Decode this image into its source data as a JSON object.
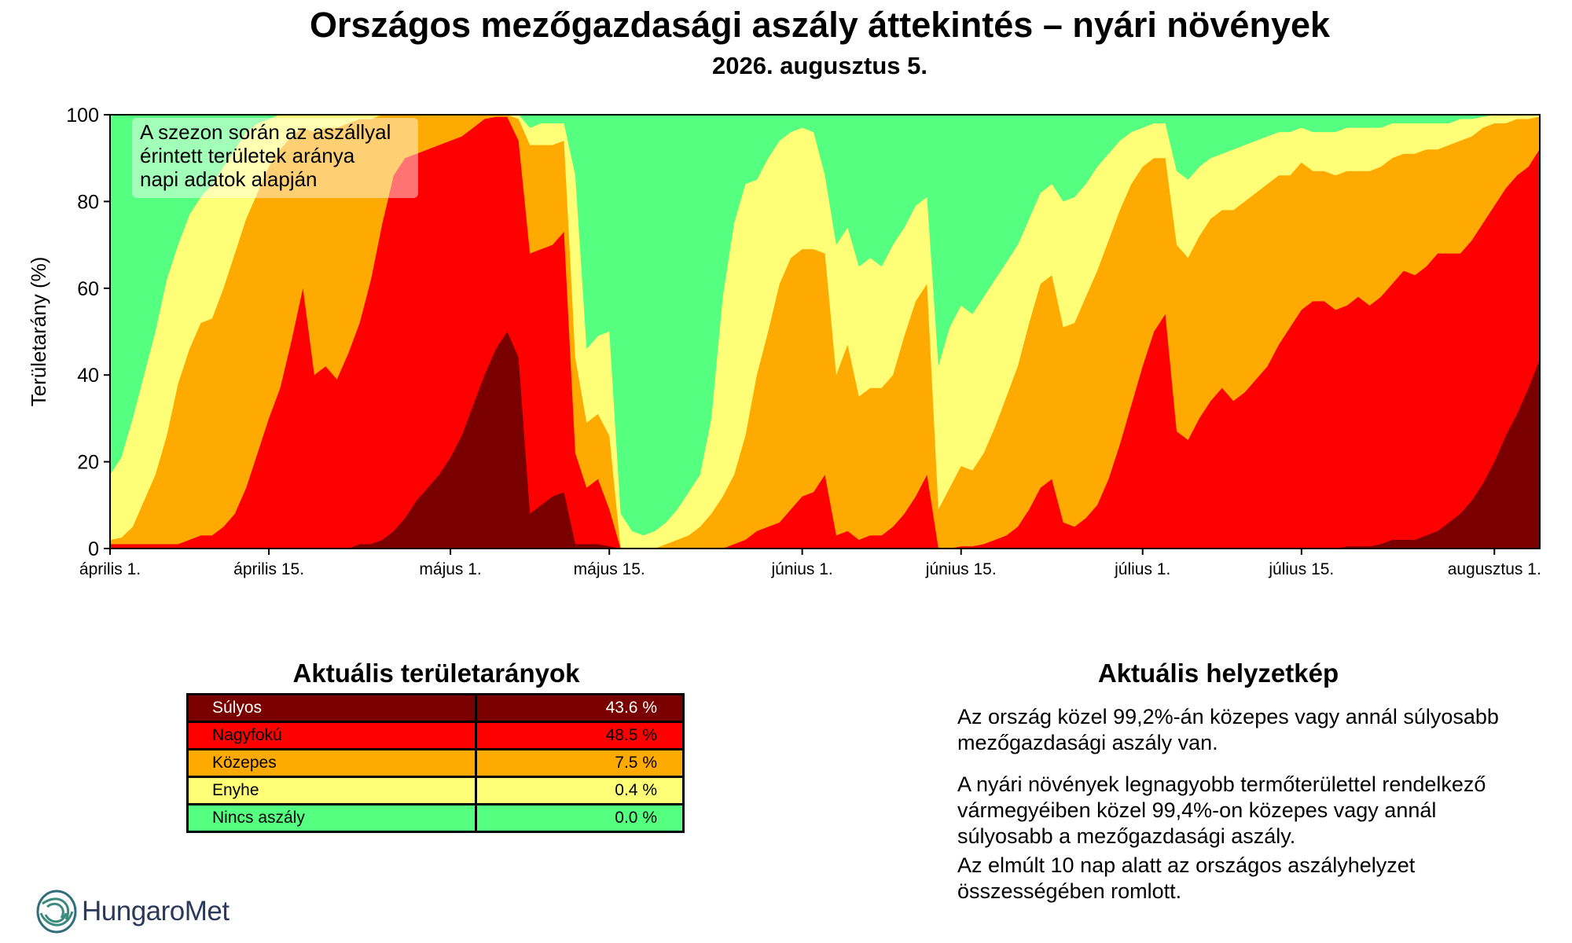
{
  "title": "Országos mezőgazdasági aszály áttekintés – nyári növények",
  "subtitle": "2026. augusztus 5.",
  "annotation": [
    "A szezon során az aszállyal",
    "érintett területek aránya",
    "napi adatok alapján"
  ],
  "colors": {
    "sulyos": "#7a0000",
    "nagyfoku": "#ff0000",
    "kozepes": "#ffaa00",
    "enyhe": "#ffff77",
    "nincs": "#55ff7f"
  },
  "chart_data": {
    "type": "area",
    "stacked": true,
    "ylabel": "Területarány (%)",
    "ylim": [
      0,
      100
    ],
    "yticks": [
      0,
      20,
      40,
      60,
      80,
      100
    ],
    "xlim": [
      "2026-04-01",
      "2026-08-05"
    ],
    "xticks": [
      {
        "date": "2026-04-01",
        "label": "április 1."
      },
      {
        "date": "2026-04-15",
        "label": "április 15."
      },
      {
        "date": "2026-05-01",
        "label": "május 1."
      },
      {
        "date": "2026-05-15",
        "label": "május 15."
      },
      {
        "date": "2026-06-01",
        "label": "június 1."
      },
      {
        "date": "2026-06-15",
        "label": "június 15."
      },
      {
        "date": "2026-07-01",
        "label": "július 1."
      },
      {
        "date": "2026-07-15",
        "label": "július 15."
      },
      {
        "date": "2026-08-01",
        "label": "augusztus 1."
      }
    ],
    "cumulative_note": "boundaries: sulyos, sulyos+nagyfoku, +kozepes, +enyhe (remainder = nincs aszály)",
    "points": [
      {
        "date": "2026-04-01",
        "c": [
          0,
          1,
          2,
          17
        ]
      },
      {
        "date": "2026-04-02",
        "c": [
          0,
          1,
          2.5,
          21
        ]
      },
      {
        "date": "2026-04-03",
        "c": [
          0,
          1,
          5,
          30
        ]
      },
      {
        "date": "2026-04-04",
        "c": [
          0,
          1,
          11,
          40
        ]
      },
      {
        "date": "2026-04-05",
        "c": [
          0,
          1,
          17,
          50
        ]
      },
      {
        "date": "2026-04-06",
        "c": [
          0,
          1,
          26,
          62
        ]
      },
      {
        "date": "2026-04-07",
        "c": [
          0,
          1,
          38,
          70
        ]
      },
      {
        "date": "2026-04-08",
        "c": [
          0,
          2,
          46,
          77
        ]
      },
      {
        "date": "2026-04-09",
        "c": [
          0,
          3,
          52,
          81
        ]
      },
      {
        "date": "2026-04-10",
        "c": [
          0,
          3,
          53,
          84
        ]
      },
      {
        "date": "2026-04-11",
        "c": [
          0,
          5,
          60,
          88
        ]
      },
      {
        "date": "2026-04-12",
        "c": [
          0,
          8,
          68,
          92
        ]
      },
      {
        "date": "2026-04-13",
        "c": [
          0,
          14,
          76,
          96
        ]
      },
      {
        "date": "2026-04-14",
        "c": [
          0,
          22,
          82,
          98
        ]
      },
      {
        "date": "2026-04-15",
        "c": [
          0,
          30,
          88,
          99
        ]
      },
      {
        "date": "2026-04-16",
        "c": [
          0,
          37,
          92,
          100
        ]
      },
      {
        "date": "2026-04-17",
        "c": [
          0,
          48,
          95,
          100
        ]
      },
      {
        "date": "2026-04-18",
        "c": [
          0,
          60,
          97,
          100
        ]
      },
      {
        "date": "2026-04-19",
        "c": [
          0,
          40,
          96,
          100
        ]
      },
      {
        "date": "2026-04-20",
        "c": [
          0,
          42,
          97,
          100
        ]
      },
      {
        "date": "2026-04-21",
        "c": [
          0,
          39,
          97,
          100
        ]
      },
      {
        "date": "2026-04-22",
        "c": [
          0,
          45,
          98,
          100
        ]
      },
      {
        "date": "2026-04-23",
        "c": [
          1,
          52,
          99,
          100
        ]
      },
      {
        "date": "2026-04-24",
        "c": [
          1,
          62,
          99,
          100
        ]
      },
      {
        "date": "2026-04-25",
        "c": [
          2,
          75,
          100,
          100
        ]
      },
      {
        "date": "2026-04-26",
        "c": [
          4,
          86,
          100,
          100
        ]
      },
      {
        "date": "2026-04-27",
        "c": [
          7,
          90,
          100,
          100
        ]
      },
      {
        "date": "2026-04-28",
        "c": [
          11,
          91,
          100,
          100
        ]
      },
      {
        "date": "2026-04-29",
        "c": [
          14,
          92,
          100,
          100
        ]
      },
      {
        "date": "2026-04-30",
        "c": [
          17,
          93,
          100,
          100
        ]
      },
      {
        "date": "2026-05-01",
        "c": [
          21,
          94,
          100,
          100
        ]
      },
      {
        "date": "2026-05-02",
        "c": [
          26,
          95,
          100,
          100
        ]
      },
      {
        "date": "2026-05-03",
        "c": [
          33,
          97,
          100,
          100
        ]
      },
      {
        "date": "2026-05-04",
        "c": [
          40,
          99,
          100,
          100
        ]
      },
      {
        "date": "2026-05-05",
        "c": [
          46,
          99.5,
          100,
          100
        ]
      },
      {
        "date": "2026-05-06",
        "c": [
          50,
          99.5,
          100,
          100
        ]
      },
      {
        "date": "2026-05-07",
        "c": [
          44,
          94,
          99,
          100
        ]
      },
      {
        "date": "2026-05-08",
        "c": [
          8,
          68,
          93,
          97
        ]
      },
      {
        "date": "2026-05-09",
        "c": [
          10,
          69,
          93,
          98
        ]
      },
      {
        "date": "2026-05-10",
        "c": [
          12,
          70,
          93,
          98
        ]
      },
      {
        "date": "2026-05-11",
        "c": [
          13,
          73,
          94,
          98
        ]
      },
      {
        "date": "2026-05-12",
        "c": [
          1,
          22,
          44,
          86
        ]
      },
      {
        "date": "2026-05-13",
        "c": [
          1,
          14,
          29,
          46
        ]
      },
      {
        "date": "2026-05-14",
        "c": [
          1,
          16,
          31,
          49
        ]
      },
      {
        "date": "2026-05-15",
        "c": [
          0.5,
          9,
          26,
          50
        ]
      },
      {
        "date": "2026-05-16",
        "c": [
          0,
          0,
          0,
          8
        ]
      },
      {
        "date": "2026-05-17",
        "c": [
          0,
          0,
          0,
          4
        ]
      },
      {
        "date": "2026-05-18",
        "c": [
          0,
          0,
          0,
          3
        ]
      },
      {
        "date": "2026-05-19",
        "c": [
          0,
          0,
          0,
          4
        ]
      },
      {
        "date": "2026-05-20",
        "c": [
          0,
          0,
          1,
          6
        ]
      },
      {
        "date": "2026-05-21",
        "c": [
          0,
          0,
          2,
          9
        ]
      },
      {
        "date": "2026-05-22",
        "c": [
          0,
          0,
          3,
          13
        ]
      },
      {
        "date": "2026-05-23",
        "c": [
          0,
          0,
          5,
          17
        ]
      },
      {
        "date": "2026-05-24",
        "c": [
          0,
          0,
          8,
          30
        ]
      },
      {
        "date": "2026-05-25",
        "c": [
          0,
          0,
          12,
          58
        ]
      },
      {
        "date": "2026-05-26",
        "c": [
          0,
          1,
          17,
          75
        ]
      },
      {
        "date": "2026-05-27",
        "c": [
          0,
          2,
          26,
          84
        ]
      },
      {
        "date": "2026-05-28",
        "c": [
          0,
          4,
          40,
          85
        ]
      },
      {
        "date": "2026-05-29",
        "c": [
          0,
          5,
          50,
          90
        ]
      },
      {
        "date": "2026-05-30",
        "c": [
          0,
          6,
          61,
          94
        ]
      },
      {
        "date": "2026-05-31",
        "c": [
          0,
          9,
          67,
          96
        ]
      },
      {
        "date": "2026-06-01",
        "c": [
          0,
          12,
          69,
          97
        ]
      },
      {
        "date": "2026-06-02",
        "c": [
          0,
          13,
          69,
          96
        ]
      },
      {
        "date": "2026-06-03",
        "c": [
          0,
          17,
          68,
          86
        ]
      },
      {
        "date": "2026-06-04",
        "c": [
          0,
          3,
          40,
          70
        ]
      },
      {
        "date": "2026-06-05",
        "c": [
          0,
          4,
          47,
          74
        ]
      },
      {
        "date": "2026-06-06",
        "c": [
          0,
          2,
          35,
          65
        ]
      },
      {
        "date": "2026-06-07",
        "c": [
          0,
          3,
          37,
          67
        ]
      },
      {
        "date": "2026-06-08",
        "c": [
          0,
          3,
          37,
          65
        ]
      },
      {
        "date": "2026-06-09",
        "c": [
          0,
          5,
          40,
          70
        ]
      },
      {
        "date": "2026-06-10",
        "c": [
          0,
          8,
          49,
          74
        ]
      },
      {
        "date": "2026-06-11",
        "c": [
          0,
          12,
          57,
          79
        ]
      },
      {
        "date": "2026-06-12",
        "c": [
          0,
          17,
          61,
          81
        ]
      },
      {
        "date": "2026-06-13",
        "c": [
          0,
          0,
          9,
          42
        ]
      },
      {
        "date": "2026-06-14",
        "c": [
          0,
          0,
          14,
          51
        ]
      },
      {
        "date": "2026-06-15",
        "c": [
          0,
          0.5,
          19,
          56
        ]
      },
      {
        "date": "2026-06-16",
        "c": [
          0,
          0.5,
          18,
          54
        ]
      },
      {
        "date": "2026-06-17",
        "c": [
          0,
          1,
          22,
          58
        ]
      },
      {
        "date": "2026-06-18",
        "c": [
          0,
          2,
          28,
          62
        ]
      },
      {
        "date": "2026-06-19",
        "c": [
          0,
          3,
          35,
          66
        ]
      },
      {
        "date": "2026-06-20",
        "c": [
          0,
          5,
          42,
          70
        ]
      },
      {
        "date": "2026-06-21",
        "c": [
          0,
          9,
          52,
          76
        ]
      },
      {
        "date": "2026-06-22",
        "c": [
          0,
          14,
          61,
          82
        ]
      },
      {
        "date": "2026-06-23",
        "c": [
          0,
          16,
          63,
          84
        ]
      },
      {
        "date": "2026-06-24",
        "c": [
          0,
          6,
          51,
          80
        ]
      },
      {
        "date": "2026-06-25",
        "c": [
          0,
          5,
          52,
          81
        ]
      },
      {
        "date": "2026-06-26",
        "c": [
          0,
          7,
          58,
          84
        ]
      },
      {
        "date": "2026-06-27",
        "c": [
          0,
          10,
          64,
          88
        ]
      },
      {
        "date": "2026-06-28",
        "c": [
          0,
          16,
          71,
          91
        ]
      },
      {
        "date": "2026-06-29",
        "c": [
          0,
          24,
          78,
          94
        ]
      },
      {
        "date": "2026-06-30",
        "c": [
          0,
          33,
          84,
          96
        ]
      },
      {
        "date": "2026-07-01",
        "c": [
          0,
          42,
          88,
          97
        ]
      },
      {
        "date": "2026-07-02",
        "c": [
          0,
          50,
          90,
          98
        ]
      },
      {
        "date": "2026-07-03",
        "c": [
          0,
          54,
          90,
          98
        ]
      },
      {
        "date": "2026-07-04",
        "c": [
          0,
          27,
          70,
          87
        ]
      },
      {
        "date": "2026-07-05",
        "c": [
          0,
          25,
          67,
          85
        ]
      },
      {
        "date": "2026-07-06",
        "c": [
          0,
          30,
          72,
          88
        ]
      },
      {
        "date": "2026-07-07",
        "c": [
          0,
          34,
          76,
          90
        ]
      },
      {
        "date": "2026-07-08",
        "c": [
          0,
          37,
          78,
          91
        ]
      },
      {
        "date": "2026-07-09",
        "c": [
          0,
          34,
          78,
          92
        ]
      },
      {
        "date": "2026-07-10",
        "c": [
          0,
          36,
          80,
          93
        ]
      },
      {
        "date": "2026-07-11",
        "c": [
          0,
          39,
          82,
          94
        ]
      },
      {
        "date": "2026-07-12",
        "c": [
          0,
          42,
          84,
          95
        ]
      },
      {
        "date": "2026-07-13",
        "c": [
          0,
          47,
          86,
          96
        ]
      },
      {
        "date": "2026-07-14",
        "c": [
          0,
          51,
          86,
          96
        ]
      },
      {
        "date": "2026-07-15",
        "c": [
          0,
          55,
          89,
          97
        ]
      },
      {
        "date": "2026-07-16",
        "c": [
          0,
          57,
          87,
          96
        ]
      },
      {
        "date": "2026-07-17",
        "c": [
          0,
          57,
          87,
          96
        ]
      },
      {
        "date": "2026-07-18",
        "c": [
          0,
          55,
          86,
          96
        ]
      },
      {
        "date": "2026-07-19",
        "c": [
          0.5,
          56,
          87,
          97
        ]
      },
      {
        "date": "2026-07-20",
        "c": [
          0.5,
          58,
          87,
          97
        ]
      },
      {
        "date": "2026-07-21",
        "c": [
          0.5,
          56,
          87,
          97
        ]
      },
      {
        "date": "2026-07-22",
        "c": [
          1,
          58,
          88,
          97
        ]
      },
      {
        "date": "2026-07-23",
        "c": [
          2,
          61,
          90,
          98
        ]
      },
      {
        "date": "2026-07-24",
        "c": [
          2,
          64,
          91,
          98
        ]
      },
      {
        "date": "2026-07-25",
        "c": [
          2,
          63,
          91,
          98
        ]
      },
      {
        "date": "2026-07-26",
        "c": [
          3,
          65,
          92,
          98
        ]
      },
      {
        "date": "2026-07-27",
        "c": [
          4,
          68,
          92,
          98
        ]
      },
      {
        "date": "2026-07-28",
        "c": [
          6,
          68,
          93,
          98
        ]
      },
      {
        "date": "2026-07-29",
        "c": [
          8,
          68,
          94,
          99
        ]
      },
      {
        "date": "2026-07-30",
        "c": [
          11,
          71,
          95,
          99
        ]
      },
      {
        "date": "2026-07-31",
        "c": [
          15,
          75,
          97,
          99.5
        ]
      },
      {
        "date": "2026-08-01",
        "c": [
          20,
          79,
          98,
          100
        ]
      },
      {
        "date": "2026-08-02",
        "c": [
          26,
          83,
          98,
          100
        ]
      },
      {
        "date": "2026-08-03",
        "c": [
          31,
          86,
          99,
          100
        ]
      },
      {
        "date": "2026-08-04",
        "c": [
          37,
          88,
          99,
          100
        ]
      },
      {
        "date": "2026-08-05",
        "c": [
          43.6,
          92.1,
          99.6,
          100
        ]
      }
    ]
  },
  "table": {
    "title": "Aktuális területarányok",
    "rows": [
      {
        "label": "Súlyos",
        "value": "43.6 %",
        "bg": "#7a0000",
        "fg": "#ffffff"
      },
      {
        "label": "Nagyfokú",
        "value": "48.5 %",
        "bg": "#ff0000",
        "fg": "#000000"
      },
      {
        "label": "Közepes",
        "value": "7.5 %",
        "bg": "#ffaa00",
        "fg": "#000000"
      },
      {
        "label": "Enyhe",
        "value": "0.4 %",
        "bg": "#ffff77",
        "fg": "#000000"
      },
      {
        "label": "Nincs aszály",
        "value": "0.0 %",
        "bg": "#55ff7f",
        "fg": "#000000"
      }
    ]
  },
  "status": {
    "title": "Aktuális helyzetkép",
    "paragraphs": [
      "Az ország közel 99,2%-án közepes vagy annál súlyosabb mezőgazdasági aszály van.",
      "A nyári növények legnagyobb termőterülettel rendelkező vármegyéiben közel 99,4%-on közepes vagy annál súlyosabb a mezőgazdasági aszály.",
      "Az elmúlt 10 nap alatt az országos aszályhelyzet összességében romlott."
    ]
  },
  "logo": {
    "text": "HungaroMet",
    "icon": "hungaromet-swirl-logo-icon"
  }
}
